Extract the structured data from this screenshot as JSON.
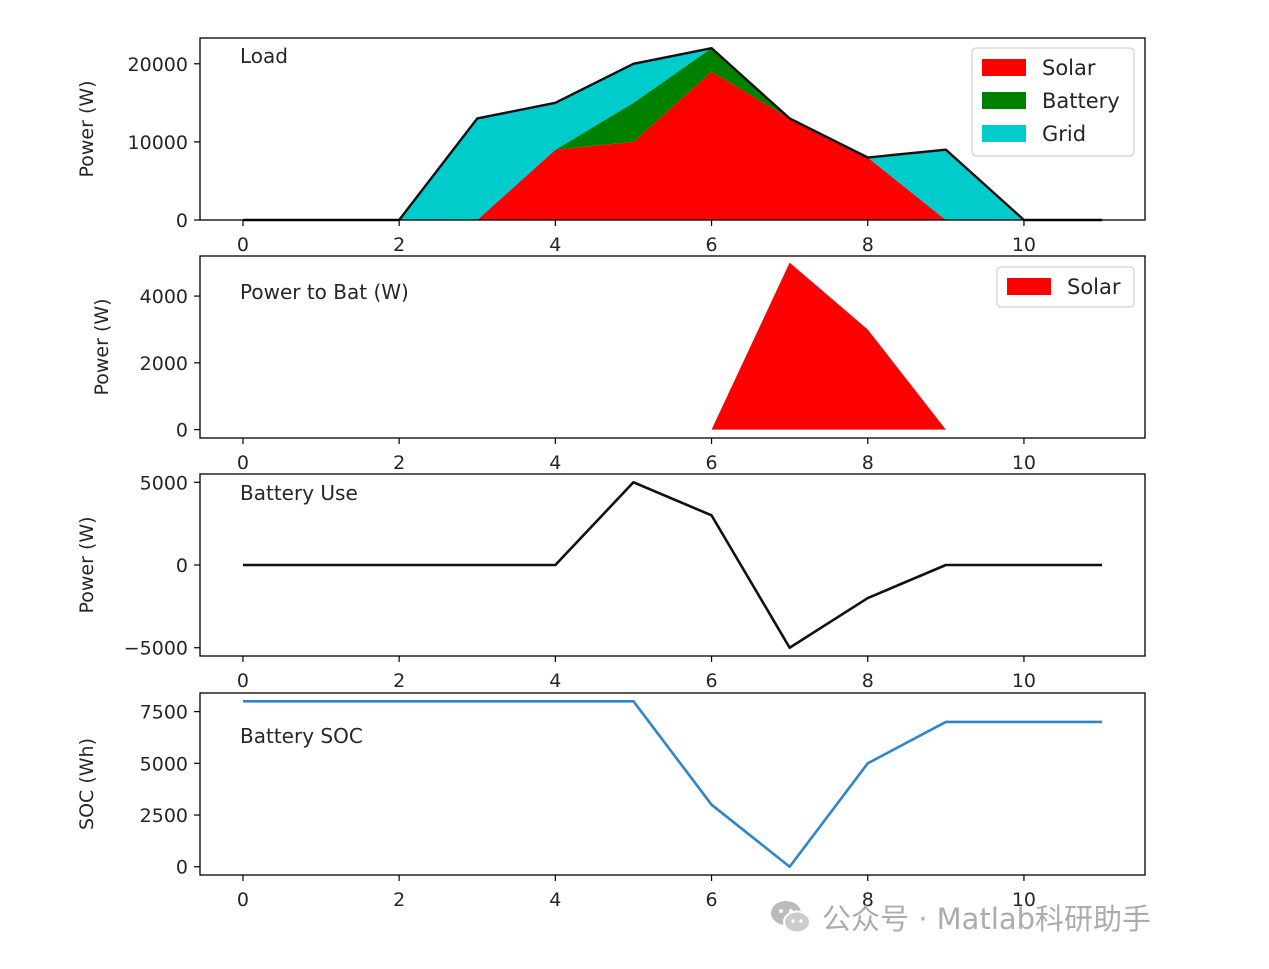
{
  "watermark": {
    "text": "公众号 · Matlab科研助手",
    "icon": "wechat-icon"
  },
  "colors": {
    "solar": "#ff0000",
    "battery": "#008000",
    "grid": "#00cccc",
    "line": "#111111",
    "soc": "#2e86c8"
  },
  "chart_data": [
    {
      "type": "area",
      "annotation": "Load",
      "ylabel": "Power (W)",
      "xlim": [
        -0.55,
        11.55
      ],
      "ylim": [
        0,
        23300
      ],
      "xticks": [
        0,
        2,
        4,
        6,
        8,
        10
      ],
      "yticks": [
        0,
        10000,
        20000
      ],
      "ytick_labels": [
        "0",
        "10000",
        "20000"
      ],
      "x": [
        0,
        1,
        2,
        3,
        4,
        5,
        6,
        7,
        8,
        9,
        10,
        11
      ],
      "stacked": true,
      "series": [
        {
          "name": "Solar",
          "color": "#ff0000",
          "values": [
            0,
            0,
            0,
            0,
            9000,
            10000,
            19000,
            13000,
            8000,
            0,
            0,
            0
          ]
        },
        {
          "name": "Battery",
          "color": "#008000",
          "values": [
            0,
            0,
            0,
            0,
            0,
            5000,
            3000,
            0,
            0,
            0,
            0,
            0
          ]
        },
        {
          "name": "Grid",
          "color": "#00cccc",
          "values": [
            0,
            0,
            0,
            13000,
            6000,
            5000,
            0,
            0,
            0,
            9000,
            0,
            0
          ]
        }
      ],
      "total_line": [
        0,
        0,
        0,
        13000,
        15000,
        20000,
        22000,
        13000,
        8000,
        9000,
        0,
        0
      ],
      "legend": {
        "entries": [
          "Solar",
          "Battery",
          "Grid"
        ],
        "placement": "top-right"
      }
    },
    {
      "type": "area",
      "annotation": "Power to Bat (W)",
      "ylabel": "Power (W)",
      "xlim": [
        -0.55,
        11.55
      ],
      "ylim": [
        -250,
        5200
      ],
      "xticks": [
        0,
        2,
        4,
        6,
        8,
        10
      ],
      "yticks": [
        0,
        2000,
        4000
      ],
      "ytick_labels": [
        "0",
        "2000",
        "4000"
      ],
      "x": [
        0,
        1,
        2,
        3,
        4,
        5,
        6,
        7,
        8,
        9,
        10,
        11
      ],
      "series": [
        {
          "name": "Solar",
          "color": "#ff0000",
          "values": [
            0,
            0,
            0,
            0,
            0,
            0,
            0,
            5000,
            3000,
            0,
            0,
            0
          ]
        }
      ],
      "legend": {
        "entries": [
          "Solar"
        ],
        "placement": "top-right"
      }
    },
    {
      "type": "line",
      "annotation": "Battery Use",
      "ylabel": "Power (W)",
      "xlim": [
        -0.55,
        11.55
      ],
      "ylim": [
        -5500,
        5500
      ],
      "xticks": [
        0,
        2,
        4,
        6,
        8,
        10
      ],
      "yticks": [
        -5000,
        0,
        5000
      ],
      "ytick_labels": [
        "−5000",
        "0",
        "5000"
      ],
      "x": [
        0,
        1,
        2,
        3,
        4,
        5,
        6,
        7,
        8,
        9,
        10,
        11
      ],
      "series": [
        {
          "color": "#111111",
          "values": [
            0,
            0,
            0,
            0,
            0,
            5000,
            3000,
            -5000,
            -2000,
            0,
            0,
            0
          ]
        }
      ]
    },
    {
      "type": "line",
      "annotation": "Battery SOC",
      "ylabel": "SOC (Wh)",
      "xlim": [
        -0.55,
        11.55
      ],
      "ylim": [
        -400,
        8400
      ],
      "xticks": [
        0,
        2,
        4,
        6,
        8,
        10
      ],
      "yticks": [
        0,
        2500,
        5000,
        7500
      ],
      "ytick_labels": [
        "0",
        "2500",
        "5000",
        "7500"
      ],
      "x": [
        0,
        1,
        2,
        3,
        4,
        5,
        6,
        7,
        8,
        9,
        10,
        11
      ],
      "series": [
        {
          "color": "#2e86c8",
          "values": [
            8000,
            8000,
            8000,
            8000,
            8000,
            8000,
            3000,
            0,
            5000,
            7000,
            7000,
            7000
          ]
        }
      ]
    }
  ]
}
